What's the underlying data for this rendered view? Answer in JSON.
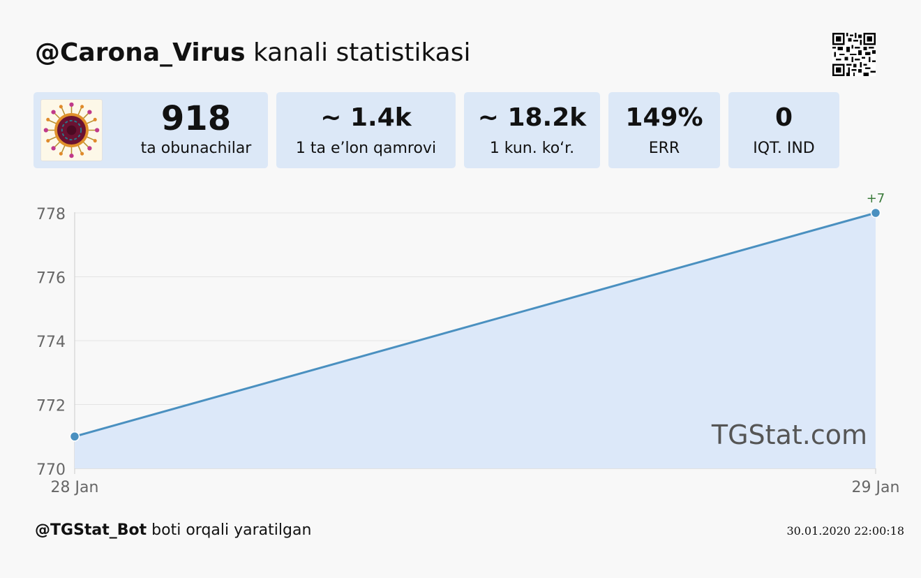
{
  "header": {
    "channel": "@Carona_Virus",
    "suffix": " kanali statistikasi"
  },
  "stats": [
    {
      "value": "918",
      "label": "ta obunachilar"
    },
    {
      "value": "~ 1.4k",
      "label": "1 ta e’lon qamrovi"
    },
    {
      "value": "~ 18.2k",
      "label": "1 kun. ko‘r."
    },
    {
      "value": "149%",
      "label": "ERR"
    },
    {
      "value": "0",
      "label": "IQT. IND"
    }
  ],
  "chart_data": {
    "type": "area",
    "categories": [
      "28 Jan",
      "29 Jan"
    ],
    "values": [
      771,
      778
    ],
    "yticks": [
      770,
      772,
      774,
      776,
      778
    ],
    "ylim": [
      770,
      778
    ],
    "annotation": "+7",
    "watermark": "TGStat.com",
    "line_color": "#4a90c0",
    "fill_color": "#dce8f9",
    "annotation_color": "#3a7a3a",
    "grid": true
  },
  "footer": {
    "bot": "@TGStat_Bot",
    "text": " boti orqali yaratilgan",
    "timestamp": "30.01.2020 22:00:18"
  }
}
